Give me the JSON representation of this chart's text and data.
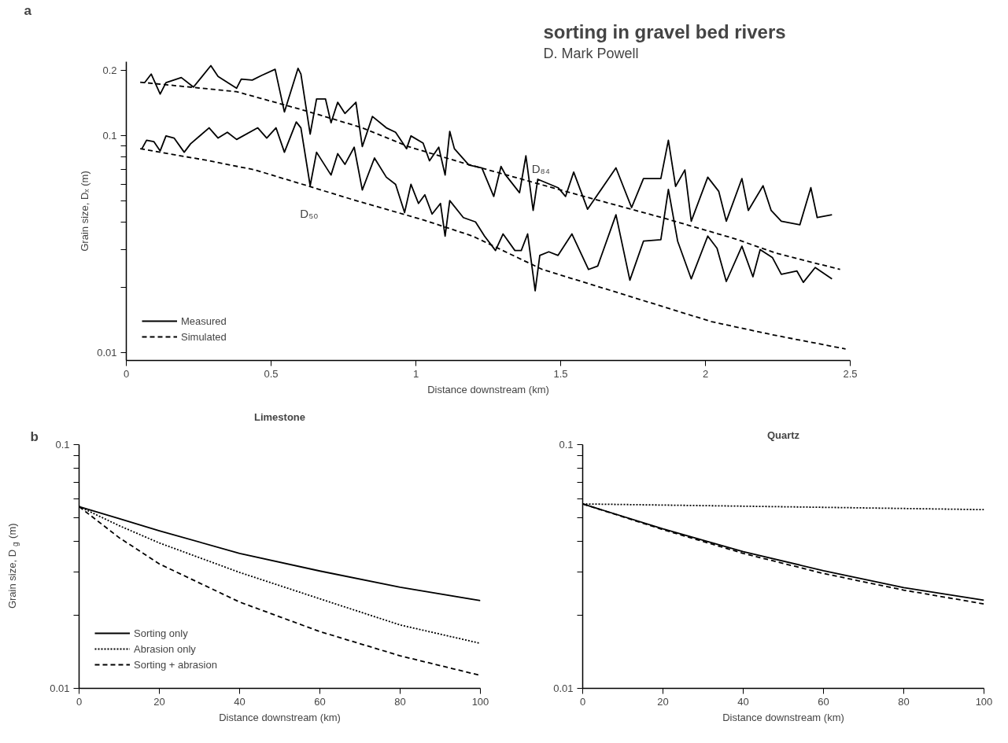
{
  "chart_data": [
    {
      "type": "line",
      "xlabel": "Distance downstream (km)",
      "ylabel": "Grain size, Dₓ (m)",
      "log": true,
      "grid": false,
      "legend": "bottom left",
      "xlim": [
        0,
        2.5
      ],
      "xticks": [
        0,
        0.5,
        1,
        1.5,
        2,
        2.5
      ],
      "ylim": [
        0.0092,
        0.22
      ],
      "yticks": [
        0.01,
        {
          "value": 0.02,
          "label": null
        },
        {
          "value": 0.03,
          "label": null
        },
        {
          "value": 0.04,
          "label": null
        },
        {
          "value": 0.05,
          "label": null
        },
        {
          "value": 0.06,
          "label": null
        },
        {
          "value": 0.07,
          "label": null
        },
        {
          "value": 0.08,
          "label": null
        },
        {
          "value": 0.09,
          "label": null
        },
        0.1,
        0.2
      ],
      "annotations": [
        "a",
        "sorting in gravel bed rivers",
        "D. Mark Powell",
        "D₈₄",
        "D₅₀"
      ],
      "series": [
        {
          "name": "Measured",
          "color": "#000000",
          "line_style": "solid",
          "x": [
            0.063,
            0.086,
            0.117,
            0.137,
            0.19,
            0.232,
            0.292,
            0.317,
            0.381,
            0.397,
            0.435,
            0.467,
            0.514,
            0.546,
            0.593,
            0.603,
            0.635,
            0.657,
            0.688,
            0.707,
            0.73,
            0.755,
            0.793,
            0.815,
            0.85,
            0.898,
            0.93,
            0.968,
            0.983,
            1.025,
            1.047,
            1.079,
            1.101,
            1.117,
            1.133,
            1.183,
            1.228,
            1.269,
            1.294,
            1.31,
            1.358,
            1.38,
            1.405,
            1.421,
            1.491,
            1.517,
            1.545,
            1.593,
            1.691,
            1.745,
            1.786,
            1.846,
            1.872,
            1.897,
            1.929,
            1.951,
            2.008,
            2.046,
            2.072,
            2.126,
            2.148,
            2.199,
            2.227,
            2.262,
            2.326,
            2.364,
            2.386,
            2.437
          ],
          "values": [
            0.176,
            0.193,
            0.156,
            0.176,
            0.186,
            0.168,
            0.211,
            0.188,
            0.166,
            0.183,
            0.181,
            0.19,
            0.203,
            0.129,
            0.205,
            0.193,
            0.102,
            0.148,
            0.148,
            0.115,
            0.143,
            0.127,
            0.143,
            0.0893,
            0.123,
            0.109,
            0.104,
            0.0873,
            0.1,
            0.0927,
            0.0768,
            0.0887,
            0.066,
            0.105,
            0.0873,
            0.0734,
            0.0712,
            0.0526,
            0.0723,
            0.066,
            0.0547,
            0.0809,
            0.0453,
            0.0631,
            0.0577,
            0.0526,
            0.0681,
            0.0459,
            0.0712,
            0.0467,
            0.0636,
            0.0636,
            0.0955,
            0.0585,
            0.0697,
            0.0404,
            0.0645,
            0.0555,
            0.0404,
            0.0636,
            0.0453,
            0.0589,
            0.0453,
            0.0404,
            0.0389,
            0.0577,
            0.042,
            0.0433
          ]
        },
        {
          "color": "#000000",
          "line_style": "solid",
          "x": [
            0.054,
            0.07,
            0.095,
            0.117,
            0.137,
            0.165,
            0.2,
            0.222,
            0.286,
            0.317,
            0.349,
            0.381,
            0.454,
            0.485,
            0.517,
            0.546,
            0.587,
            0.603,
            0.635,
            0.657,
            0.707,
            0.73,
            0.755,
            0.787,
            0.815,
            0.857,
            0.898,
            0.93,
            0.961,
            0.983,
            1.009,
            1.031,
            1.056,
            1.085,
            1.101,
            1.117,
            1.164,
            1.206,
            1.237,
            1.275,
            1.301,
            1.342,
            1.364,
            1.386,
            1.412,
            1.428,
            1.459,
            1.491,
            1.539,
            1.596,
            1.628,
            1.691,
            1.739,
            1.786,
            1.846,
            1.872,
            1.904,
            1.951,
            2.008,
            2.04,
            2.072,
            2.126,
            2.164,
            2.189,
            2.231,
            2.262,
            2.316,
            2.338,
            2.379,
            2.437
          ],
          "values": [
            0.0873,
            0.0955,
            0.0942,
            0.0853,
            0.1,
            0.0978,
            0.0841,
            0.092,
            0.109,
            0.0978,
            0.104,
            0.0963,
            0.109,
            0.0978,
            0.109,
            0.0841,
            0.116,
            0.109,
            0.0589,
            0.0841,
            0.066,
            0.0828,
            0.0739,
            0.0887,
            0.0563,
            0.0791,
            0.0645,
            0.0598,
            0.0443,
            0.0598,
            0.0488,
            0.0535,
            0.0436,
            0.0488,
            0.0345,
            0.0503,
            0.042,
            0.0401,
            0.0345,
            0.0296,
            0.0353,
            0.0296,
            0.0296,
            0.0353,
            0.0193,
            0.0281,
            0.0292,
            0.0281,
            0.0353,
            0.0242,
            0.0251,
            0.0433,
            0.0216,
            0.0327,
            0.0332,
            0.0567,
            0.0327,
            0.0219,
            0.0345,
            0.0303,
            0.0213,
            0.031,
            0.0224,
            0.0299,
            0.0275,
            0.023,
            0.0238,
            0.0211,
            0.0247,
            0.0219
          ]
        },
        {
          "name": "Simulated",
          "color": "#000000",
          "line_style": "dashed",
          "x": [
            0.048,
            0.381,
            0.625,
            0.815,
            0.974,
            1.164,
            1.545,
            1.85,
            2.103,
            2.243,
            2.465
          ],
          "values": [
            0.177,
            0.16,
            0.13,
            0.109,
            0.0893,
            0.075,
            0.0542,
            0.042,
            0.0335,
            0.0288,
            0.0242
          ]
        },
        {
          "color": "#000000",
          "line_style": "dashed",
          "x": [
            0.048,
            0.286,
            0.444,
            0.625,
            0.793,
            1.025,
            1.196,
            1.437,
            1.704,
            2.021,
            2.23,
            2.484
          ],
          "values": [
            0.0873,
            0.0768,
            0.0697,
            0.0589,
            0.0503,
            0.041,
            0.0345,
            0.0242,
            0.0188,
            0.0139,
            0.0121,
            0.0104
          ]
        }
      ]
    },
    {
      "type": "line",
      "title": "Limestone",
      "xlabel": "Distance downstream (km)",
      "ylabel": "Grain size, D$_{g}$ (m)",
      "log": true,
      "grid": false,
      "legend": "bottom left",
      "xlim": [
        0,
        100
      ],
      "xticks": [
        0,
        20,
        40,
        60,
        80,
        100
      ],
      "ylim": [
        0.01,
        0.1
      ],
      "yticks": [
        0.01,
        {
          "value": 0.02,
          "label": null
        },
        {
          "value": 0.03,
          "label": null
        },
        {
          "value": 0.04,
          "label": null
        },
        {
          "value": 0.05,
          "label": null
        },
        {
          "value": 0.06,
          "label": null
        },
        {
          "value": 0.07,
          "label": null
        },
        {
          "value": 0.08,
          "label": null
        },
        {
          "value": 0.09,
          "label": null
        },
        0.1
      ],
      "annotations": [
        "b"
      ],
      "x": [
        0,
        10,
        20,
        40,
        60,
        80,
        100
      ],
      "series": [
        {
          "name": "Sorting only",
          "color": "#000000",
          "line_style": "solid",
          "values": [
            0.0557,
            0.0497,
            0.0443,
            0.0358,
            0.0303,
            0.026,
            0.0229
          ]
        },
        {
          "name": "Abrasion only",
          "color": "#000000",
          "line_style": "dotted",
          "values": [
            0.0557,
            0.0465,
            0.0395,
            0.0299,
            0.0233,
            0.0182,
            0.0153
          ]
        },
        {
          "name": "Sorting + abrasion",
          "color": "#000000",
          "line_style": "dashed",
          "values": [
            0.0557,
            0.0415,
            0.0324,
            0.0226,
            0.0171,
            0.0136,
            0.0113
          ]
        }
      ]
    },
    {
      "type": "line",
      "title": "Quartz",
      "xlabel": "Distance downstream (km)",
      "log": true,
      "grid": false,
      "xlim": [
        0,
        100
      ],
      "xticks": [
        0,
        20,
        40,
        60,
        80,
        100
      ],
      "ylim": [
        0.01,
        0.1
      ],
      "yticks": [
        0.01,
        {
          "value": 0.02,
          "label": null
        },
        {
          "value": 0.03,
          "label": null
        },
        {
          "value": 0.04,
          "label": null
        },
        {
          "value": 0.05,
          "label": null
        },
        {
          "value": 0.06,
          "label": null
        },
        {
          "value": 0.07,
          "label": null
        },
        {
          "value": 0.08,
          "label": null
        },
        {
          "value": 0.09,
          "label": null
        },
        0.1
      ],
      "x": [
        0,
        20,
        40,
        60,
        80,
        100
      ],
      "series": [
        {
          "color": "#000000",
          "line_style": "solid",
          "values": [
            0.0571,
            0.0451,
            0.0364,
            0.0304,
            0.0259,
            0.023
          ]
        },
        {
          "color": "#000000",
          "line_style": "dotted",
          "values": [
            0.0571,
            0.0565,
            0.0559,
            0.0553,
            0.0547,
            0.0541
          ]
        },
        {
          "color": "#000000",
          "line_style": "dashed",
          "values": [
            0.0571,
            0.0448,
            0.0358,
            0.0296,
            0.0253,
            0.0222
          ]
        }
      ]
    }
  ]
}
